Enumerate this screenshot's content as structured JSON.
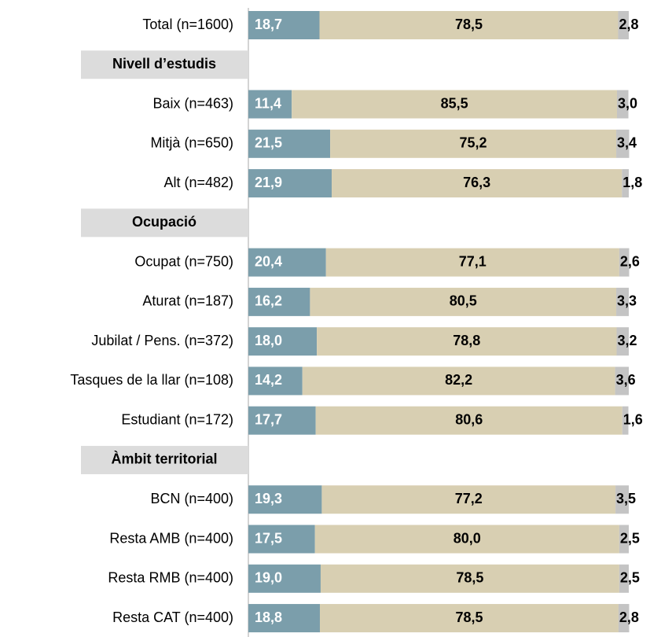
{
  "chart_data": {
    "type": "bar",
    "orientation": "horizontal",
    "stacked": true,
    "colors": [
      "#7b9eab",
      "#d8cfb2",
      "#c4c4c4"
    ],
    "xlim": [
      0,
      100
    ],
    "groups": [
      {
        "categories": [
          "Total (n=1600)"
        ],
        "series": [
          [
            18.7
          ],
          [
            78.5
          ],
          [
            2.8
          ]
        ],
        "value_labels": [
          [
            "18,7"
          ],
          [
            "78,5"
          ],
          [
            "2,8"
          ]
        ]
      },
      {
        "title": "Nivell d’estudis",
        "categories": [
          "Baix (n=463)",
          "Mitjà (n=650)",
          "Alt (n=482)"
        ],
        "series": [
          [
            11.4,
            21.5,
            21.9
          ],
          [
            85.5,
            75.2,
            76.3
          ],
          [
            3.0,
            3.4,
            1.8
          ]
        ],
        "value_labels": [
          [
            "11,4",
            "21,5",
            "21,9"
          ],
          [
            "85,5",
            "75,2",
            "76,3"
          ],
          [
            "3,0",
            "3,4",
            "1,8"
          ]
        ]
      },
      {
        "title": "Ocupació",
        "categories": [
          "Ocupat (n=750)",
          "Aturat (n=187)",
          "Jubilat / Pens. (n=372)",
          "Tasques de la llar (n=108)",
          "Estudiant (n=172)"
        ],
        "series": [
          [
            20.4,
            16.2,
            18.0,
            14.2,
            17.7
          ],
          [
            77.1,
            80.5,
            78.8,
            82.2,
            80.6
          ],
          [
            2.6,
            3.3,
            3.2,
            3.6,
            1.6
          ]
        ],
        "value_labels": [
          [
            "20,4",
            "16,2",
            "18,0",
            "14,2",
            "17,7"
          ],
          [
            "77,1",
            "80,5",
            "78,8",
            "82,2",
            "80,6"
          ],
          [
            "2,6",
            "3,3",
            "3,2",
            "3,6",
            "1,6"
          ]
        ]
      },
      {
        "title": "Àmbit territorial",
        "categories": [
          "BCN (n=400)",
          "Resta AMB (n=400)",
          "Resta RMB (n=400)",
          "Resta CAT (n=400)"
        ],
        "series": [
          [
            19.3,
            17.5,
            19.0,
            18.8
          ],
          [
            77.2,
            80.0,
            78.5,
            78.5
          ],
          [
            3.5,
            2.5,
            2.5,
            2.8
          ]
        ],
        "value_labels": [
          [
            "19,3",
            "17,5",
            "19,0",
            "18,8"
          ],
          [
            "77,2",
            "80,0",
            "78,5",
            "78,5"
          ],
          [
            "3,5",
            "2,5",
            "2,5",
            "2,8"
          ]
        ]
      }
    ]
  }
}
